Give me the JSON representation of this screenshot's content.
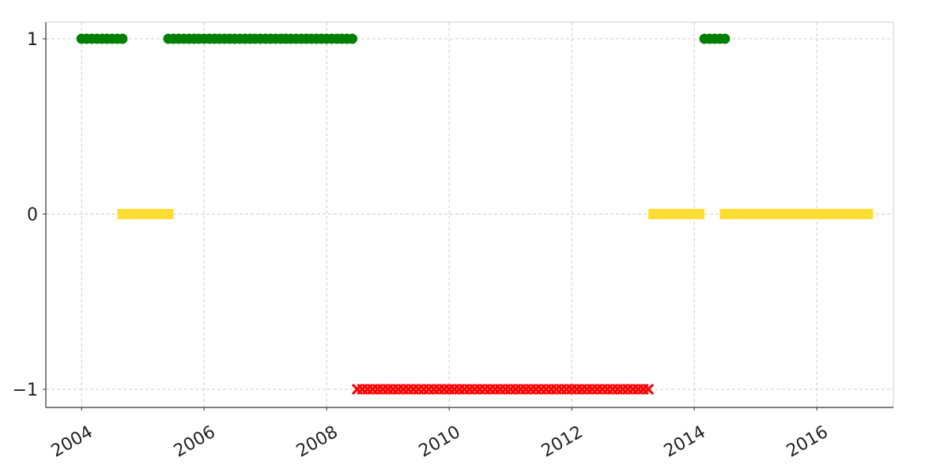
{
  "chart_data": {
    "type": "scatter",
    "title": "",
    "xlabel": "",
    "ylabel": "",
    "x_axis_type": "date",
    "xlim": [
      "2003-06-01",
      "2017-04-01"
    ],
    "ylim": [
      -1.1,
      1.1
    ],
    "x_ticks": [
      {
        "date": "2004-01-01",
        "label": "2004"
      },
      {
        "date": "2006-01-01",
        "label": "2006"
      },
      {
        "date": "2008-01-01",
        "label": "2008"
      },
      {
        "date": "2010-01-01",
        "label": "2010"
      },
      {
        "date": "2012-01-01",
        "label": "2012"
      },
      {
        "date": "2014-01-01",
        "label": "2014"
      },
      {
        "date": "2016-01-01",
        "label": "2016"
      }
    ],
    "y_ticks": [
      {
        "value": 1,
        "label": "1"
      },
      {
        "value": 0,
        "label": "0"
      },
      {
        "value": -1,
        "label": "−1"
      }
    ],
    "grid": true,
    "series": [
      {
        "value": 1,
        "marker": "circle",
        "color": "#008000",
        "start": "2004-01-01",
        "end": "2004-09-01"
      },
      {
        "value": 1,
        "marker": "circle",
        "color": "#008000",
        "start": "2005-06-01",
        "end": "2008-06-01"
      },
      {
        "value": 1,
        "marker": "circle",
        "color": "#008000",
        "start": "2014-03-01",
        "end": "2014-07-01"
      },
      {
        "value": 0,
        "marker": "square",
        "color": "#FFDD33",
        "start": "2004-09-01",
        "end": "2005-06-01"
      },
      {
        "value": 0,
        "marker": "square",
        "color": "#FFDD33",
        "start": "2013-05-01",
        "end": "2014-02-01"
      },
      {
        "value": 0,
        "marker": "square",
        "color": "#FFDD33",
        "start": "2014-07-01",
        "end": "2016-11-01"
      },
      {
        "value": -1,
        "marker": "x",
        "color": "#FF0000",
        "start": "2008-07-01",
        "end": "2013-04-01"
      }
    ]
  }
}
